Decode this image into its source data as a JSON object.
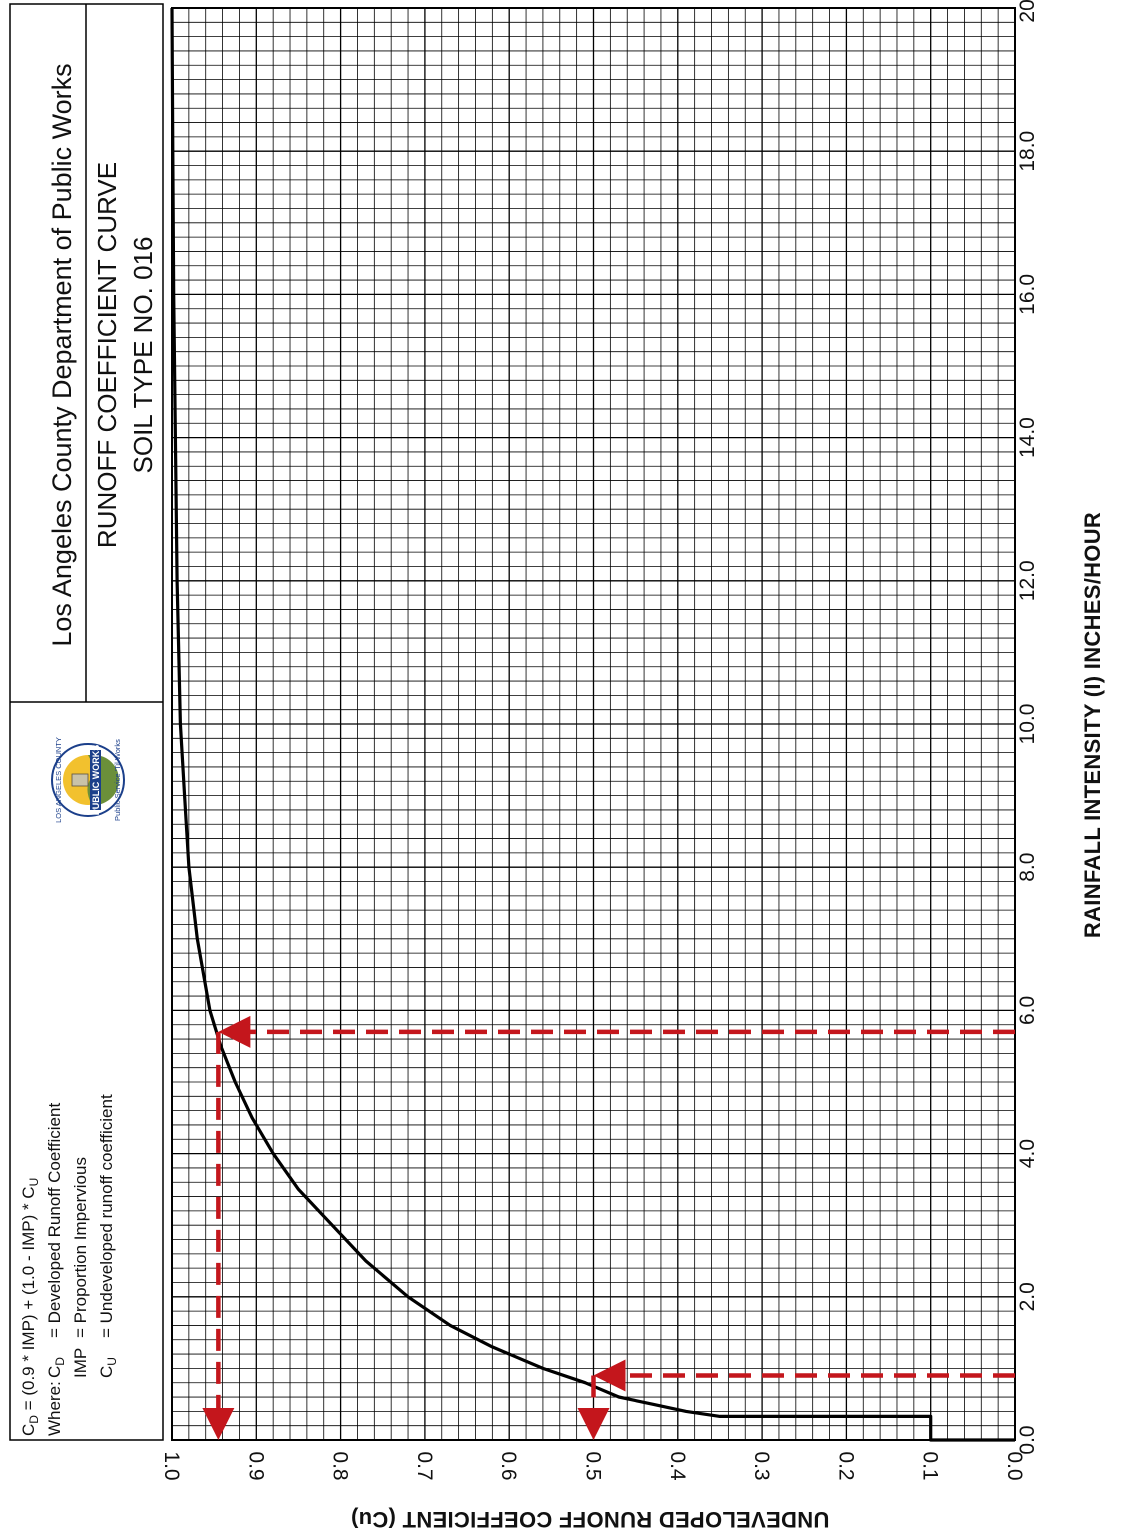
{
  "header": {
    "agency": "Los Angeles County Department of Public Works",
    "title": "RUNOFF COEFFICIENT CURVE",
    "subtitle": "SOIL TYPE NO. 016"
  },
  "formula": {
    "equation": {
      "cd": "C",
      "cd_sub": "D",
      "rest": " = (0.9 * IMP) + (1.0 - IMP) * C",
      "cu_sub": "U"
    },
    "where_label": "Where:",
    "definitions": [
      {
        "symbol": "C",
        "symbol_sub": "D",
        "text": "= Developed Runoff Coefficient"
      },
      {
        "symbol": "IMP",
        "symbol_sub": "",
        "text": "= Proportion Impervious"
      },
      {
        "symbol": "C",
        "symbol_sub": "U",
        "text": "= Undeveloped runoff coefficient"
      }
    ]
  },
  "logo": {
    "ring_top": "LOS ANGELES COUNTY",
    "banner": "PUBLIC WORKS",
    "ring_bottom": "Public Service 'Til Works",
    "colors": {
      "ring": "#1b3f8a",
      "sun": "#f2c12e",
      "land": "#6b8f3a",
      "banner": "#1b3f8a"
    }
  },
  "chart_data": {
    "type": "line",
    "xlabel": "RAINFALL INTENSITY (I) INCHES/HOUR",
    "ylabel": "UNDEVELOPED RUNOFF COEFFICIENT (Cu)",
    "xlim": [
      0,
      20
    ],
    "ylim": [
      0,
      1
    ],
    "x_ticks": [
      "0.0",
      "2.0",
      "4.0",
      "6.0",
      "8.0",
      "10.0",
      "12.0",
      "14.0",
      "16.0",
      "18.0",
      "20."
    ],
    "y_ticks": [
      "0.0",
      "0.1",
      "0.2",
      "0.3",
      "0.4",
      "0.5",
      "0.6",
      "0.7",
      "0.8",
      "0.9",
      "1.0"
    ],
    "grid": true,
    "series": [
      {
        "color": "#000000",
        "x": [
          0,
          0,
          0.33,
          0.33,
          0.4,
          0.5,
          0.6,
          0.8,
          1.0,
          1.3,
          1.6,
          2.0,
          2.5,
          3.0,
          3.5,
          4.0,
          4.5,
          5.0,
          5.5,
          6.0,
          7.0,
          8.0,
          9.0,
          10.0,
          12.0,
          14.0,
          16.0,
          18.0,
          20.0
        ],
        "y": [
          0,
          0.1,
          0.1,
          0.35,
          0.39,
          0.43,
          0.47,
          0.51,
          0.56,
          0.62,
          0.67,
          0.72,
          0.77,
          0.81,
          0.85,
          0.88,
          0.905,
          0.925,
          0.942,
          0.955,
          0.97,
          0.98,
          0.985,
          0.99,
          0.994,
          0.996,
          0.998,
          0.999,
          1.0
        ]
      }
    ],
    "annotations": [
      {
        "color": "#c4161c",
        "style": "dashed",
        "from_x": 5.7,
        "from_y": 0,
        "to_x": 5.7,
        "to_y": 0.945,
        "then_x": 0,
        "then_y": 0.945
      },
      {
        "color": "#c4161c",
        "style": "dashed",
        "from_x": 0.9,
        "from_y": 0,
        "to_x": 0.9,
        "to_y": 0.5,
        "then_x": 0,
        "then_y": 0.5
      }
    ]
  }
}
